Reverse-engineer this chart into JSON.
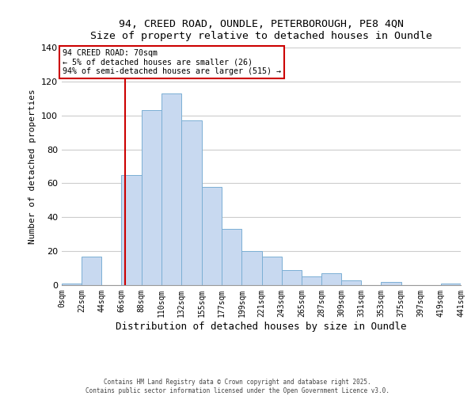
{
  "title_line1": "94, CREED ROAD, OUNDLE, PETERBOROUGH, PE8 4QN",
  "title_line2": "Size of property relative to detached houses in Oundle",
  "xlabel": "Distribution of detached houses by size in Oundle",
  "ylabel": "Number of detached properties",
  "bin_edges": [
    0,
    22,
    44,
    66,
    88,
    110,
    132,
    155,
    177,
    199,
    221,
    243,
    265,
    287,
    309,
    331,
    353,
    375,
    397,
    419,
    441
  ],
  "bin_counts": [
    1,
    17,
    0,
    65,
    103,
    113,
    97,
    58,
    33,
    20,
    17,
    9,
    5,
    7,
    3,
    0,
    2,
    0,
    0,
    1
  ],
  "bar_color": "#c8d9f0",
  "bar_edgecolor": "#7bafd4",
  "vline_x": 70,
  "vline_color": "#cc0000",
  "annotation_title": "94 CREED ROAD: 70sqm",
  "annotation_line1": "← 5% of detached houses are smaller (26)",
  "annotation_line2": "94% of semi-detached houses are larger (515) →",
  "annotation_box_edgecolor": "#cc0000",
  "annotation_box_facecolor": "#ffffff",
  "ylim": [
    0,
    140
  ],
  "yticks": [
    0,
    20,
    40,
    60,
    80,
    100,
    120,
    140
  ],
  "tick_labels": [
    "0sqm",
    "22sqm",
    "44sqm",
    "66sqm",
    "88sqm",
    "110sqm",
    "132sqm",
    "155sqm",
    "177sqm",
    "199sqm",
    "221sqm",
    "243sqm",
    "265sqm",
    "287sqm",
    "309sqm",
    "331sqm",
    "353sqm",
    "375sqm",
    "397sqm",
    "419sqm",
    "441sqm"
  ],
  "footer_line1": "Contains HM Land Registry data © Crown copyright and database right 2025.",
  "footer_line2": "Contains public sector information licensed under the Open Government Licence v3.0.",
  "background_color": "#ffffff",
  "grid_color": "#cccccc"
}
